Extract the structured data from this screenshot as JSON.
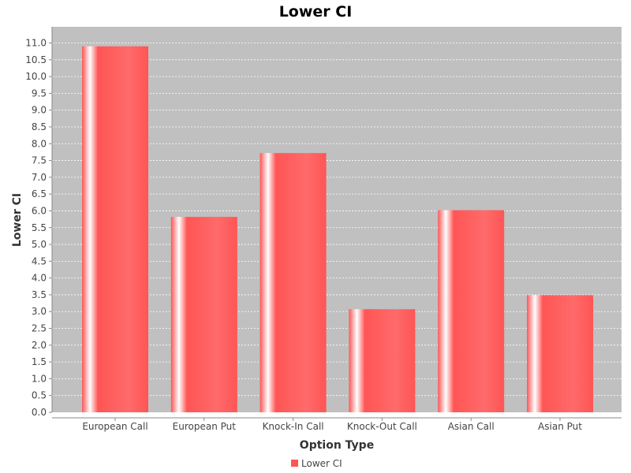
{
  "chart_data": {
    "type": "bar",
    "title": "Lower CI",
    "xlabel": "Option Type",
    "ylabel": "Lower CI",
    "categories": [
      "European Call",
      "European Put",
      "Knock-In Call",
      "Knock-Out Call",
      "Asian Call",
      "Asian Put"
    ],
    "series": [
      {
        "name": "Lower CI",
        "values": [
          10.9,
          5.82,
          7.72,
          3.07,
          6.02,
          3.49
        ]
      }
    ],
    "ylim": [
      0,
      11.0
    ],
    "ytick_step": 0.5,
    "yticks": [
      "0.0",
      "0.5",
      "1.0",
      "1.5",
      "2.0",
      "2.5",
      "3.0",
      "3.5",
      "4.0",
      "4.5",
      "5.0",
      "5.5",
      "6.0",
      "6.5",
      "7.0",
      "7.5",
      "8.0",
      "8.5",
      "9.0",
      "9.5",
      "10.0",
      "10.5",
      "11.0"
    ],
    "grid": true,
    "legend": "bottom-center",
    "colors": {
      "bar": "#ff5555",
      "bar_highlight": "#ffffff",
      "plot_background": "#c0c0c0",
      "gridline": "#ffffff"
    }
  }
}
